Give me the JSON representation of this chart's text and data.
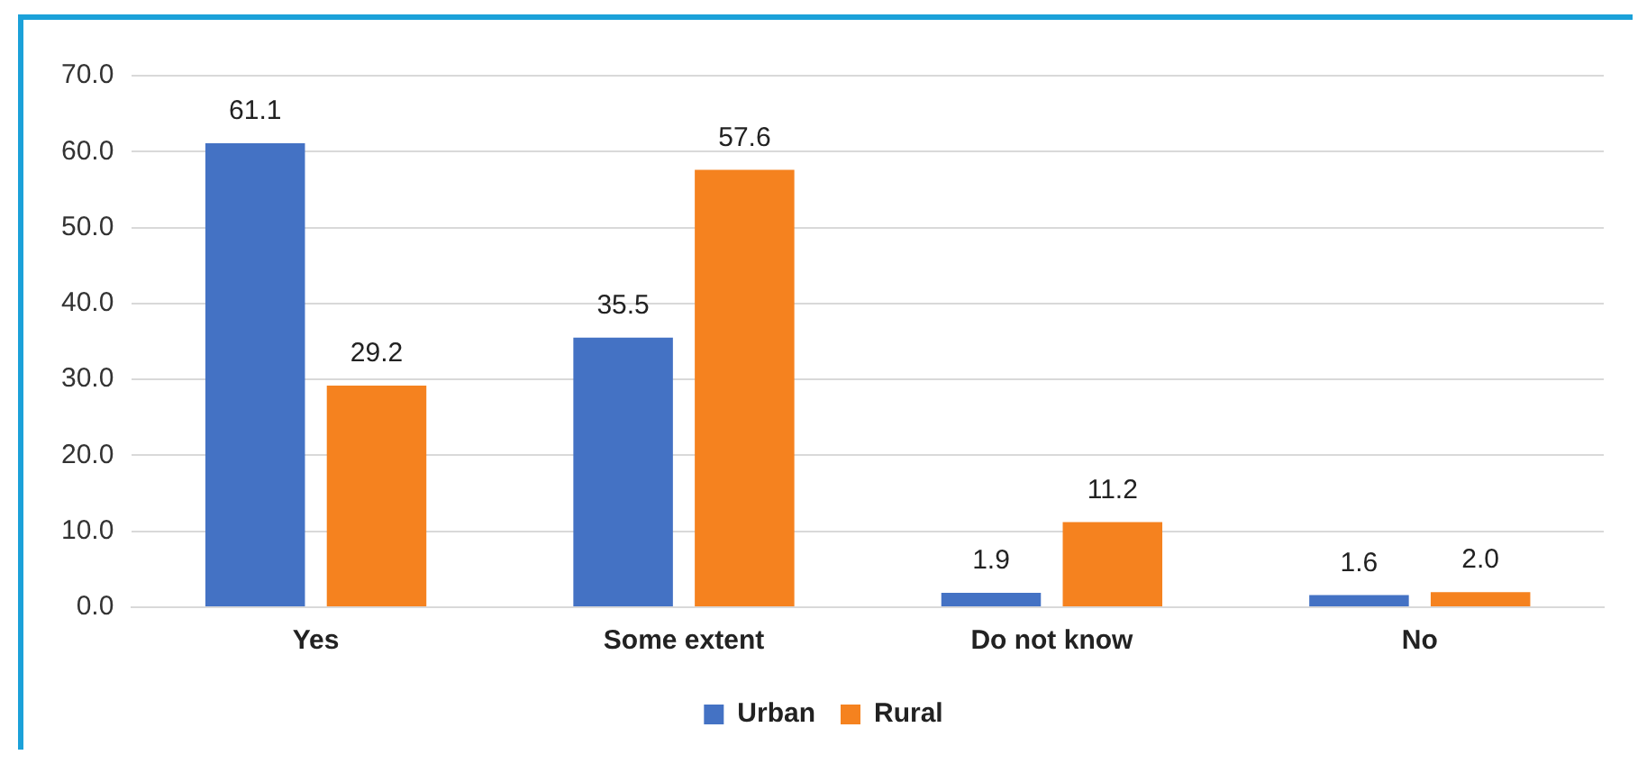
{
  "chart_data": {
    "type": "bar",
    "categories": [
      "Yes",
      "Some extent",
      "Do not know",
      "No"
    ],
    "series": [
      {
        "name": "Urban",
        "color": "#4472c4",
        "values": [
          61.1,
          35.5,
          1.9,
          1.6
        ],
        "value_labels": [
          "61.1",
          "35.5",
          "1.9",
          "1.6"
        ]
      },
      {
        "name": "Rural",
        "color": "#f5821f",
        "values": [
          29.2,
          57.6,
          11.2,
          2.0
        ],
        "value_labels": [
          "29.2",
          "57.6",
          "11.2",
          "2.0"
        ]
      }
    ],
    "ylim": [
      0,
      70
    ],
    "yticks": [
      {
        "value": 0,
        "label": "0.0"
      },
      {
        "value": 10,
        "label": "10.0"
      },
      {
        "value": 20,
        "label": "20.0"
      },
      {
        "value": 30,
        "label": "30.0"
      },
      {
        "value": 40,
        "label": "40.0"
      },
      {
        "value": 50,
        "label": "50.0"
      },
      {
        "value": 60,
        "label": "60.0"
      },
      {
        "value": 70,
        "label": "70.0"
      }
    ],
    "grid": "y",
    "legend": "bottom"
  }
}
